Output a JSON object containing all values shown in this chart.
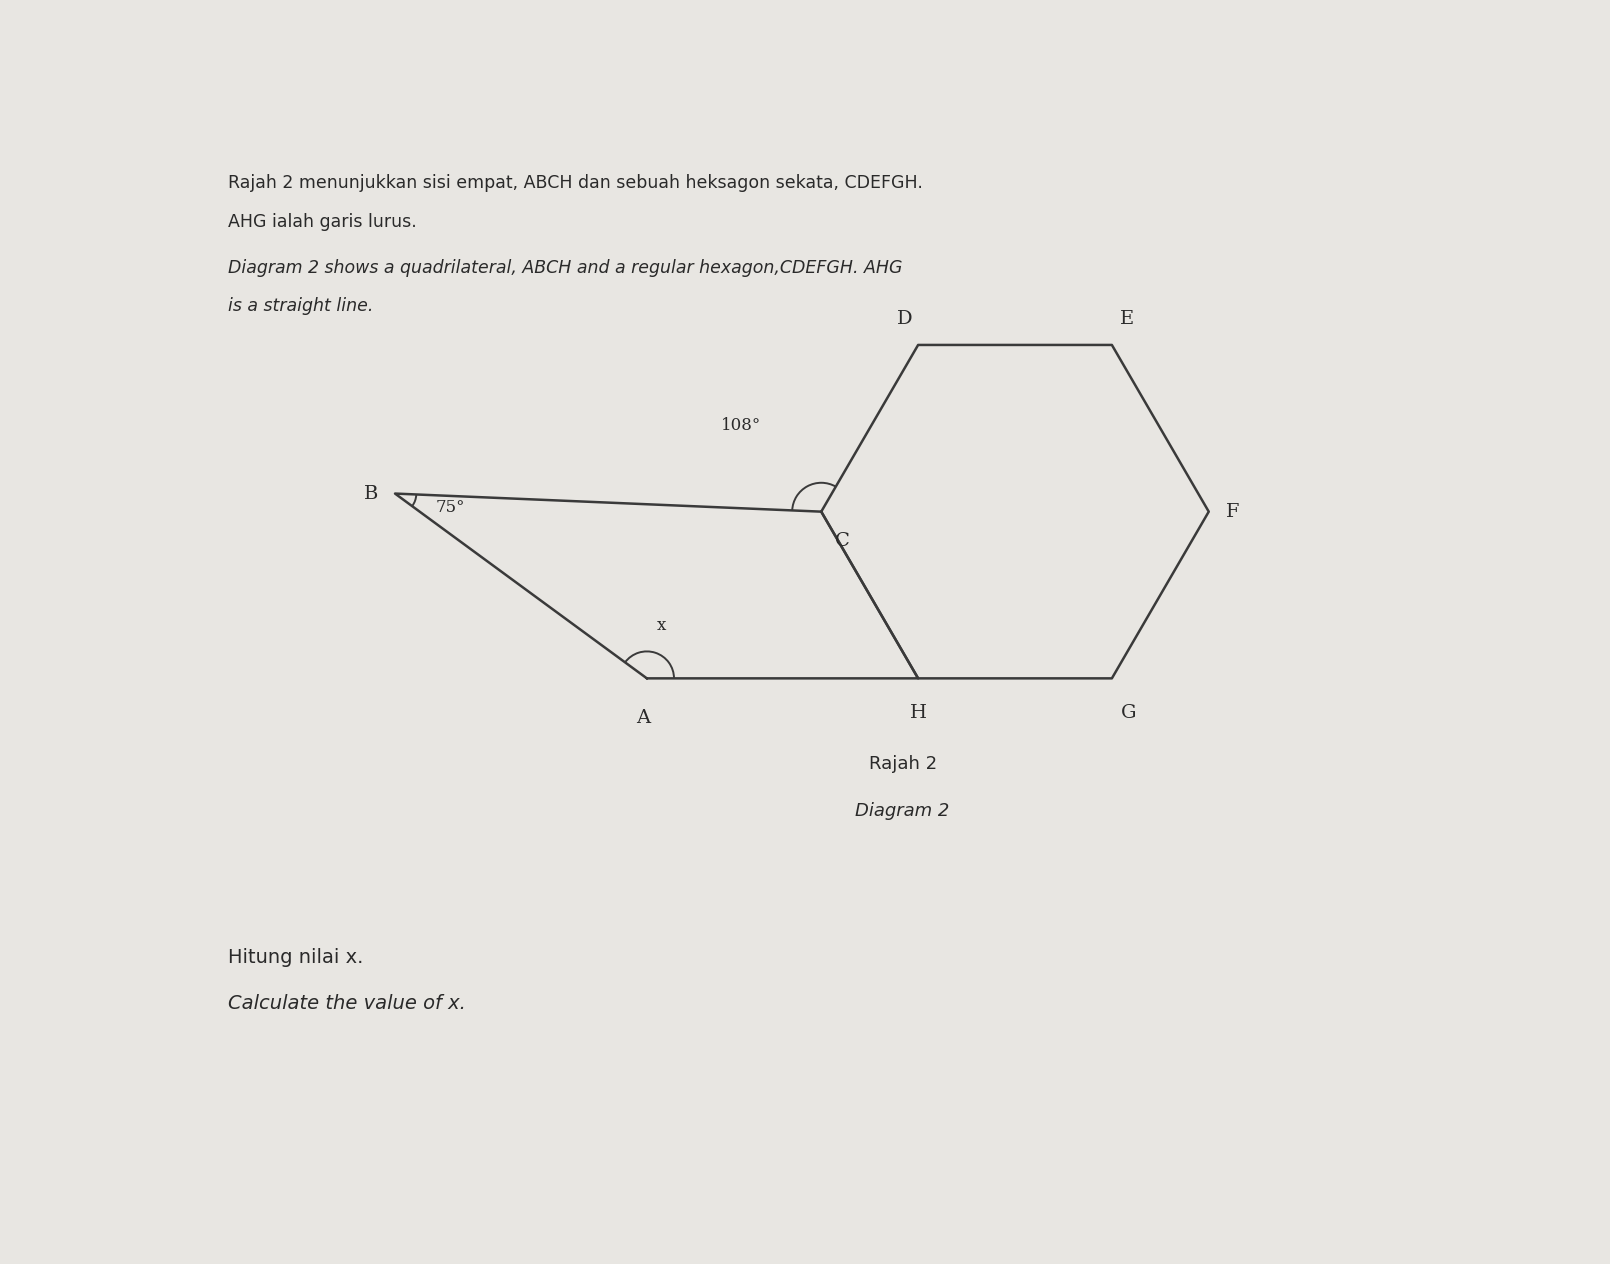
{
  "bg_color": "#e8e6e2",
  "text_color": "#2a2a2a",
  "line_color": "#3a3a3a",
  "title_line1": "Rajah 2 menunjukkan sisi empat, ABCH dan sebuah heksagon sekata, CDEFGH.",
  "title_line2": "AHG ialah garis lurus.",
  "title_line3": "Diagram 2 shows a quadrilateral, ABCH and a regular hexagon,CDEFGH. AHG",
  "title_line4": "is a straight line.",
  "caption_line1": "Rajah 2",
  "caption_line2": "Diagram 2",
  "bottom_line1": "Hitung nilai x.",
  "bottom_line2": "Calculate the value of x.",
  "angle_B": "75°",
  "angle_C": "108°",
  "angle_A": "x",
  "label_A": "A",
  "label_B": "B",
  "label_C": "C",
  "label_D": "D",
  "label_E": "E",
  "label_F": "F",
  "label_G": "G",
  "label_H": "H"
}
